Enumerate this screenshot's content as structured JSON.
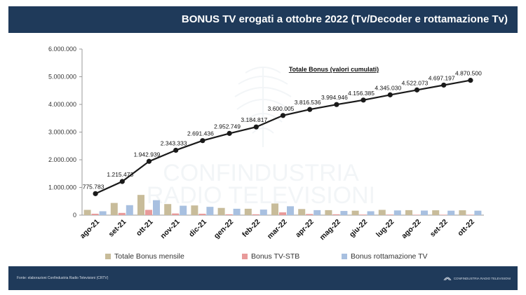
{
  "header": {
    "title": "BONUS TV erogati a ottobre 2022 (Tv/Decoder e rottamazione Tv)"
  },
  "footer": {
    "source": "Fonte: elaborazioni Confindustria Radio Televisioni (CRTV)",
    "logo_text": "CONFINDUSTRIA RADIO TELEVISIONI"
  },
  "colors": {
    "header_bg": "#1f3a5a",
    "line": "#1a1a1a",
    "totale": "#c8bc9a",
    "tv_stb": "#e89a9a",
    "rottamazione": "#a8c0e0"
  },
  "chart_data": {
    "type": "bar+line",
    "categories": [
      "ago-21",
      "set-21",
      "ott-21",
      "nov-21",
      "dic-21",
      "gen-22",
      "feb-22",
      "mar-22",
      "apr-22",
      "mag-22",
      "giu-22",
      "lug-22",
      "ago-22",
      "set-22",
      "ott-22"
    ],
    "line_series": {
      "name": "Totale Bonus (valori cumulati)",
      "values": [
        775783,
        1215473,
        1942939,
        2343333,
        2691436,
        2952749,
        3184817,
        3600005,
        3816536,
        3994946,
        4156385,
        4345030,
        4522073,
        4697197,
        4870500
      ],
      "labels": [
        "775.783",
        "1.215.473",
        "1.942.939",
        "2.343.333",
        "2.691.436",
        "2.952.749",
        "3.184.817",
        "3.600.005",
        "3.816.536",
        "3.994.946",
        "4.156.385",
        "4.345.030",
        "4.522.073",
        "4.697.197",
        "4.870.500"
      ]
    },
    "bar_series": [
      {
        "name": "Totale Bonus mensile",
        "values": [
          190000,
          440000,
          730000,
          400000,
          350000,
          260000,
          230000,
          420000,
          220000,
          180000,
          160000,
          190000,
          180000,
          175000,
          175000
        ]
      },
      {
        "name": "Bonus TV-STB",
        "values": [
          50000,
          80000,
          190000,
          60000,
          50000,
          30000,
          30000,
          100000,
          40000,
          30000,
          20000,
          20000,
          15000,
          15000,
          15000
        ]
      },
      {
        "name": "Bonus rottamazione TV",
        "values": [
          140000,
          360000,
          540000,
          340000,
          300000,
          230000,
          200000,
          320000,
          180000,
          150000,
          140000,
          170000,
          165000,
          160000,
          160000
        ]
      }
    ],
    "yticks": [
      "6.000.000",
      "5.000.000",
      "4.000.000",
      "3.000.000",
      "2.000.000",
      "1.000.000",
      "0"
    ],
    "ylim": [
      0,
      6000000
    ],
    "grid": false,
    "legend_position": "bottom"
  }
}
